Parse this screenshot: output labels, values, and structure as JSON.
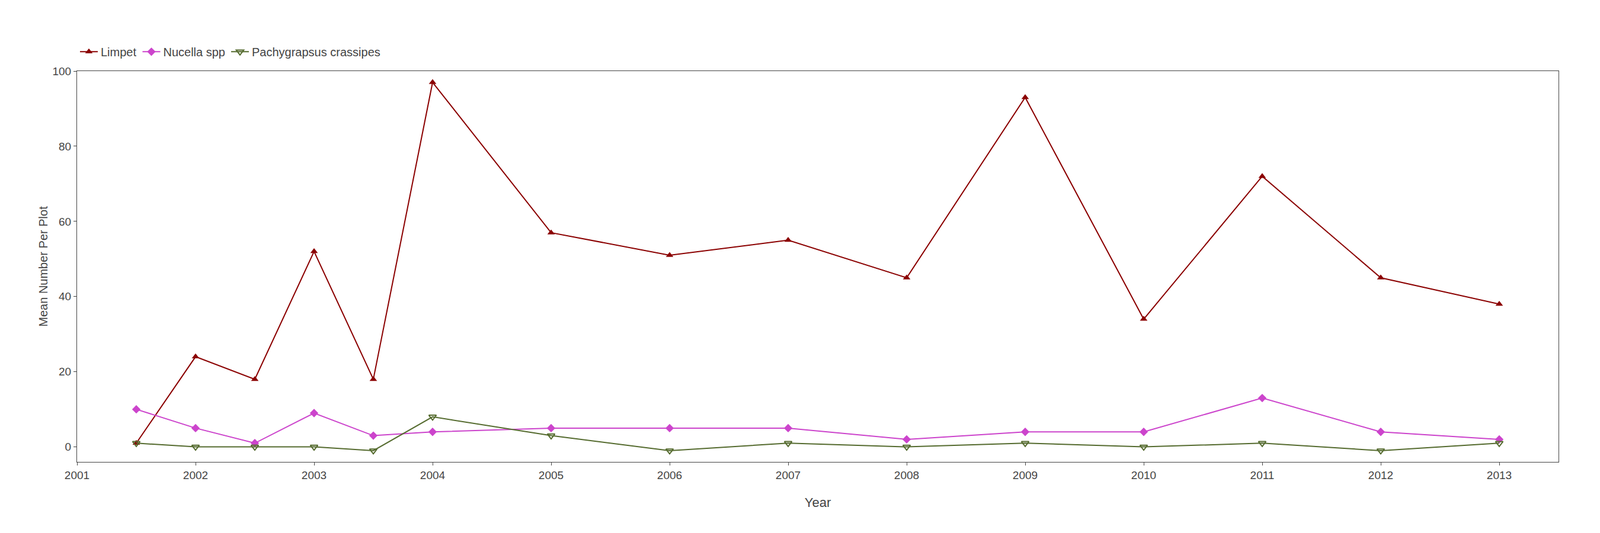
{
  "chart_data": {
    "type": "line",
    "xlabel": "Year",
    "ylabel": "Mean Number Per Plot",
    "x": [
      2001.5,
      2002,
      2002.5,
      2003,
      2003.5,
      2004,
      2005,
      2006,
      2007,
      2008,
      2009,
      2010,
      2011,
      2012,
      2013
    ],
    "series": [
      {
        "name": "Limpet",
        "color": "#8B0000",
        "marker": "triangle-up",
        "values": [
          1,
          24,
          18,
          52,
          18,
          97,
          57,
          51,
          55,
          45,
          93,
          34,
          72,
          45,
          38
        ]
      },
      {
        "name": "Nucella spp",
        "color": "#CC44CC",
        "marker": "diamond",
        "values": [
          10,
          5,
          1,
          9,
          3,
          4,
          5,
          5,
          5,
          2,
          4,
          4,
          13,
          4,
          2
        ]
      },
      {
        "name": "Pachygrapsus crassipes",
        "color": "#556B2F",
        "marker": "triangle-down-open",
        "values": [
          1,
          0,
          0,
          0,
          -1,
          8,
          3,
          -1,
          1,
          0,
          1,
          0,
          1,
          -1,
          1
        ]
      }
    ],
    "xlim": [
      2001,
      2013.5
    ],
    "xticks": [
      2001,
      2002,
      2003,
      2004,
      2005,
      2006,
      2007,
      2008,
      2009,
      2010,
      2011,
      2012,
      2013
    ],
    "ylim": [
      -4,
      100
    ],
    "yticks": [
      0,
      20,
      40,
      60,
      80,
      100
    ],
    "grid": false,
    "legend": "top"
  }
}
